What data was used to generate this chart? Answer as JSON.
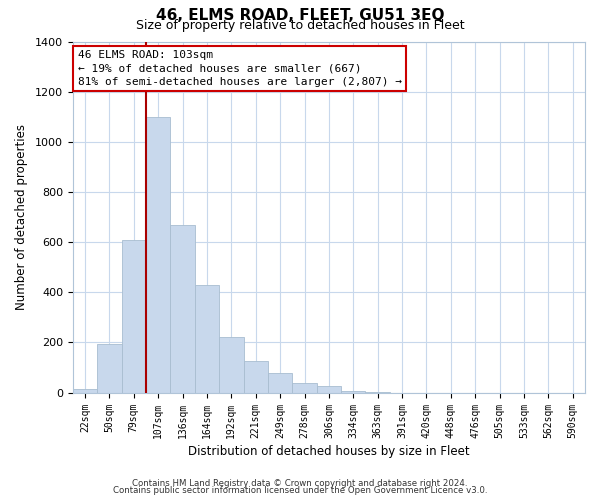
{
  "title": "46, ELMS ROAD, FLEET, GU51 3EQ",
  "subtitle": "Size of property relative to detached houses in Fleet",
  "xlabel": "Distribution of detached houses by size in Fleet",
  "ylabel": "Number of detached properties",
  "bar_color": "#c8d8ec",
  "bar_edge_color": "#a8bdd0",
  "grid_color": "#c8d8ec",
  "categories": [
    "22sqm",
    "50sqm",
    "79sqm",
    "107sqm",
    "136sqm",
    "164sqm",
    "192sqm",
    "221sqm",
    "249sqm",
    "278sqm",
    "306sqm",
    "334sqm",
    "363sqm",
    "391sqm",
    "420sqm",
    "448sqm",
    "476sqm",
    "505sqm",
    "533sqm",
    "562sqm",
    "590sqm"
  ],
  "values": [
    15,
    195,
    610,
    1100,
    670,
    430,
    220,
    125,
    78,
    40,
    27,
    8,
    2,
    0,
    0,
    0,
    0,
    0,
    0,
    0,
    0
  ],
  "ylim": [
    0,
    1400
  ],
  "yticks": [
    0,
    200,
    400,
    600,
    800,
    1000,
    1200,
    1400
  ],
  "vline_index": 3,
  "vline_color": "#aa0000",
  "annotation_title": "46 ELMS ROAD: 103sqm",
  "annotation_line1": "← 19% of detached houses are smaller (667)",
  "annotation_line2": "81% of semi-detached houses are larger (2,807) →",
  "annotation_box_facecolor": "#ffffff",
  "annotation_box_edgecolor": "#cc0000",
  "footnote1": "Contains HM Land Registry data © Crown copyright and database right 2024.",
  "footnote2": "Contains public sector information licensed under the Open Government Licence v3.0."
}
